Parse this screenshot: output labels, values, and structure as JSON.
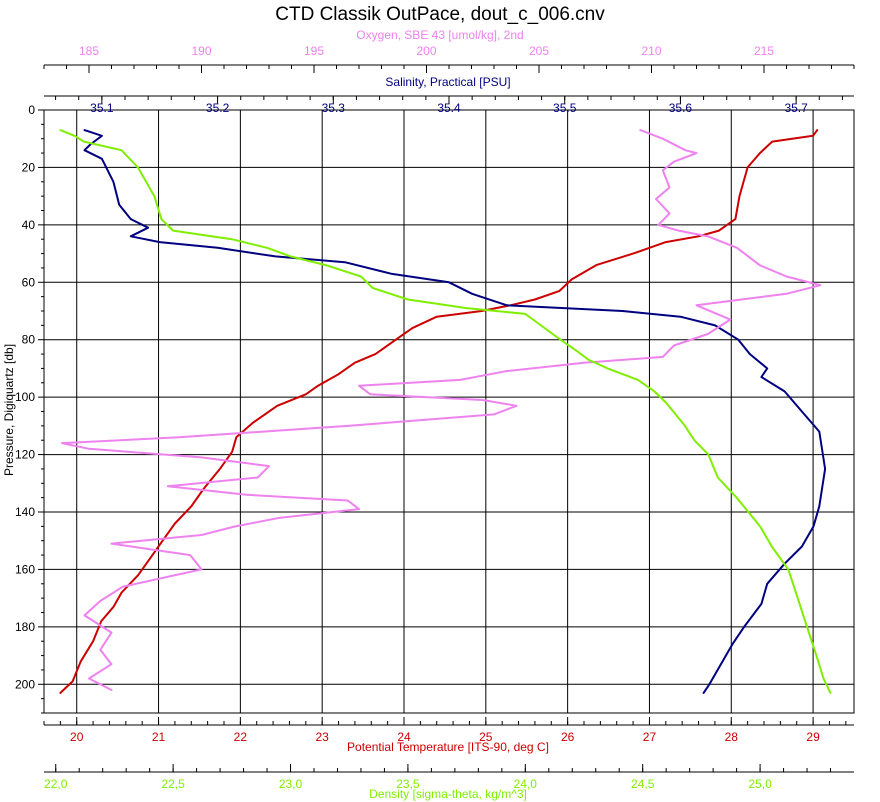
{
  "chart_data": {
    "type": "line",
    "title": "CTD Classik OutPace, dout_c_006.cnv",
    "ylabel": "Pressure, Digiquartz [db]",
    "ylim": [
      0,
      210
    ],
    "y_reversed": true,
    "yticks": [
      0,
      20,
      40,
      60,
      80,
      100,
      120,
      140,
      160,
      180,
      200
    ],
    "grid": true,
    "axes": {
      "oxygen": {
        "label": "Oxygen, SBE 43 [umol/kg], 2nd",
        "color": "#ee82ee",
        "position": "top-outer",
        "range": [
          183,
          219
        ],
        "ticks": [
          185,
          190,
          195,
          200,
          205,
          210,
          215
        ]
      },
      "salinity": {
        "label": "Salinity, Practical [PSU]",
        "color": "#000080",
        "position": "top-inner",
        "range": [
          35.05,
          35.75
        ],
        "ticks": [
          "35.1",
          "35.2",
          "35.3",
          "35.4",
          "35.5",
          "35.6",
          "35.7"
        ]
      },
      "temperature": {
        "label": "Potential Temperature [ITS-90, deg C]",
        "color": "#cc0000",
        "position": "bottom-inner",
        "range": [
          19.6,
          29.5
        ],
        "ticks": [
          20,
          21,
          22,
          23,
          24,
          25,
          26,
          27,
          28,
          29
        ]
      },
      "density": {
        "label": "Density [sigma-theta, kg/m^3]",
        "color": "#80ee00",
        "position": "bottom-outer",
        "range": [
          21.95,
          25.4
        ],
        "ticks": [
          "22,0",
          "22,5",
          "23,0",
          "23,5",
          "24,0",
          "24,5",
          "25,0"
        ]
      }
    },
    "series": [
      {
        "key": "temperature",
        "axis": "temperature",
        "color": "#cc0000",
        "points": [
          [
            29.05,
            7
          ],
          [
            29.0,
            9
          ],
          [
            28.5,
            11
          ],
          [
            28.35,
            15
          ],
          [
            28.2,
            20
          ],
          [
            28.1,
            30
          ],
          [
            28.05,
            38
          ],
          [
            27.85,
            42
          ],
          [
            27.6,
            44
          ],
          [
            27.2,
            46
          ],
          [
            26.8,
            50
          ],
          [
            26.35,
            54
          ],
          [
            26.05,
            59
          ],
          [
            25.9,
            63
          ],
          [
            25.6,
            66
          ],
          [
            25.3,
            68
          ],
          [
            24.95,
            70
          ],
          [
            24.4,
            72
          ],
          [
            24.1,
            76
          ],
          [
            23.9,
            80
          ],
          [
            23.65,
            85
          ],
          [
            23.4,
            88
          ],
          [
            23.2,
            92
          ],
          [
            22.95,
            96
          ],
          [
            22.8,
            99
          ],
          [
            22.45,
            103
          ],
          [
            22.15,
            109
          ],
          [
            21.95,
            114
          ],
          [
            21.9,
            119
          ],
          [
            21.75,
            125
          ],
          [
            21.55,
            132
          ],
          [
            21.4,
            138
          ],
          [
            21.2,
            144
          ],
          [
            21.05,
            150
          ],
          [
            20.9,
            156
          ],
          [
            20.75,
            162
          ],
          [
            20.55,
            168
          ],
          [
            20.45,
            173
          ],
          [
            20.3,
            178
          ],
          [
            20.2,
            185
          ],
          [
            20.05,
            192
          ],
          [
            19.95,
            199
          ],
          [
            19.8,
            203
          ]
        ]
      },
      {
        "key": "salinity",
        "axis": "salinity",
        "color": "#000080",
        "points": [
          [
            35.085,
            7
          ],
          [
            35.1,
            9
          ],
          [
            35.09,
            12
          ],
          [
            35.085,
            14
          ],
          [
            35.1,
            17
          ],
          [
            35.11,
            25
          ],
          [
            35.115,
            33
          ],
          [
            35.125,
            38
          ],
          [
            35.14,
            41
          ],
          [
            35.125,
            44
          ],
          [
            35.15,
            46
          ],
          [
            35.2,
            48
          ],
          [
            35.25,
            51
          ],
          [
            35.31,
            53
          ],
          [
            35.35,
            57
          ],
          [
            35.4,
            60
          ],
          [
            35.42,
            64
          ],
          [
            35.45,
            68
          ],
          [
            35.55,
            70
          ],
          [
            35.6,
            72
          ],
          [
            35.63,
            75
          ],
          [
            35.65,
            80
          ],
          [
            35.66,
            85
          ],
          [
            35.675,
            90
          ],
          [
            35.67,
            93
          ],
          [
            35.69,
            98
          ],
          [
            35.705,
            105
          ],
          [
            35.72,
            112
          ],
          [
            35.725,
            125
          ],
          [
            35.72,
            138
          ],
          [
            35.715,
            145
          ],
          [
            35.705,
            152
          ],
          [
            35.69,
            158
          ],
          [
            35.675,
            165
          ],
          [
            35.67,
            172
          ],
          [
            35.655,
            180
          ],
          [
            35.645,
            186
          ],
          [
            35.635,
            193
          ],
          [
            35.625,
            200
          ],
          [
            35.62,
            203
          ]
        ]
      },
      {
        "key": "oxygen",
        "axis": "oxygen",
        "color": "#ee82ee",
        "points": [
          [
            209.5,
            7
          ],
          [
            210.5,
            10
          ],
          [
            211.5,
            14
          ],
          [
            212.0,
            15
          ],
          [
            211.0,
            18
          ],
          [
            210.5,
            21
          ],
          [
            210.8,
            27
          ],
          [
            210.2,
            31
          ],
          [
            210.8,
            36
          ],
          [
            210.3,
            40
          ],
          [
            211.2,
            42
          ],
          [
            212.5,
            44
          ],
          [
            213.8,
            48
          ],
          [
            214.8,
            54
          ],
          [
            216.0,
            58
          ],
          [
            217.5,
            61
          ],
          [
            216.0,
            64
          ],
          [
            214.0,
            66
          ],
          [
            212.0,
            68
          ],
          [
            213.5,
            73
          ],
          [
            212.5,
            78
          ],
          [
            211.0,
            82
          ],
          [
            210.5,
            86
          ],
          [
            207.0,
            88
          ],
          [
            203.5,
            91
          ],
          [
            201.5,
            94
          ],
          [
            197.0,
            96
          ],
          [
            197.5,
            99
          ],
          [
            202.5,
            101
          ],
          [
            204.0,
            103
          ],
          [
            203.0,
            106
          ],
          [
            196.5,
            110
          ],
          [
            189.0,
            114
          ],
          [
            183.8,
            116
          ],
          [
            185.0,
            118
          ],
          [
            190.0,
            121
          ],
          [
            193.0,
            124
          ],
          [
            192.5,
            128
          ],
          [
            188.5,
            131
          ],
          [
            192.0,
            134
          ],
          [
            196.5,
            136
          ],
          [
            197.0,
            139
          ],
          [
            193.5,
            142
          ],
          [
            191.5,
            145
          ],
          [
            190.0,
            148
          ],
          [
            186.0,
            151
          ],
          [
            189.5,
            155
          ],
          [
            190.0,
            160
          ],
          [
            186.5,
            166
          ],
          [
            185.5,
            171
          ],
          [
            184.8,
            176
          ],
          [
            186.0,
            182
          ],
          [
            185.5,
            188
          ],
          [
            186.0,
            193
          ],
          [
            185.0,
            198
          ],
          [
            186.0,
            202
          ]
        ]
      },
      {
        "key": "density",
        "axis": "density",
        "color": "#80ee00",
        "points": [
          [
            22.02,
            7
          ],
          [
            22.08,
            9
          ],
          [
            22.12,
            11
          ],
          [
            22.28,
            14
          ],
          [
            22.35,
            20
          ],
          [
            22.42,
            30
          ],
          [
            22.45,
            38
          ],
          [
            22.5,
            42
          ],
          [
            22.75,
            45
          ],
          [
            22.9,
            48
          ],
          [
            23.0,
            51
          ],
          [
            23.15,
            54
          ],
          [
            23.3,
            58
          ],
          [
            23.35,
            62
          ],
          [
            23.5,
            66
          ],
          [
            23.75,
            69
          ],
          [
            24.0,
            71
          ],
          [
            24.05,
            74
          ],
          [
            24.15,
            80
          ],
          [
            24.22,
            84
          ],
          [
            24.27,
            87
          ],
          [
            24.35,
            90
          ],
          [
            24.48,
            94
          ],
          [
            24.55,
            98
          ],
          [
            24.6,
            102
          ],
          [
            24.68,
            110
          ],
          [
            24.72,
            115
          ],
          [
            24.78,
            120
          ],
          [
            24.82,
            128
          ],
          [
            24.9,
            135
          ],
          [
            25.0,
            145
          ],
          [
            25.05,
            152
          ],
          [
            25.12,
            160
          ],
          [
            25.16,
            170
          ],
          [
            25.2,
            180
          ],
          [
            25.24,
            190
          ],
          [
            25.27,
            198
          ],
          [
            25.3,
            203
          ]
        ]
      }
    ]
  }
}
